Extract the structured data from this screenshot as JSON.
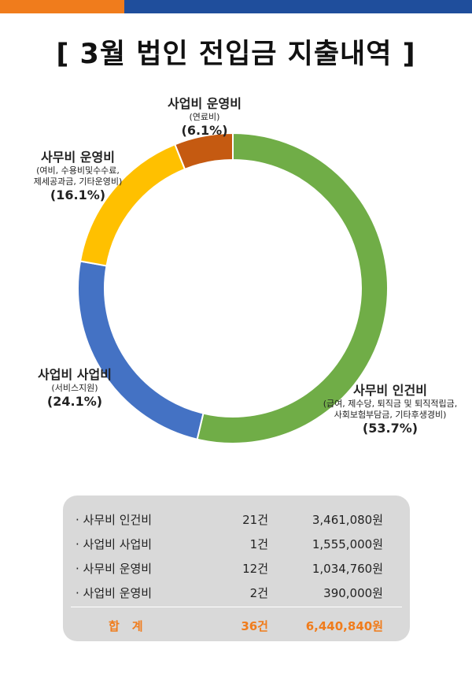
{
  "header": {
    "title": "[ 3월 법인 전입금 지출내역 ]"
  },
  "colors": {
    "accent_orange": "#f07c1c",
    "accent_blue": "#1f4e9c",
    "table_bg": "#d9d9d9"
  },
  "chart_data": {
    "type": "pie",
    "style": "donut",
    "title": "",
    "slices": [
      {
        "label": "사무비 인건비",
        "detail": [
          "(급여, 제수당, 퇴직금 및 퇴직적립금,",
          "사회보험부담금, 기타후생경비)"
        ],
        "value": 53.7,
        "pct_label": "(53.7%)",
        "color": "#70ad47"
      },
      {
        "label": "사업비 사업비",
        "detail": [
          "(서비스지원)"
        ],
        "value": 24.1,
        "pct_label": "(24.1%)",
        "color": "#4472c4"
      },
      {
        "label": "사무비 운영비",
        "detail": [
          "(여비, 수용비및수수료,",
          "제세공과금, 기타운영비)"
        ],
        "value": 16.1,
        "pct_label": "(16.1%)",
        "color": "#ffc000"
      },
      {
        "label": "사업비 운영비",
        "detail": [
          "(연료비)"
        ],
        "value": 6.1,
        "pct_label": "(6.1%)",
        "color": "#c55a11"
      }
    ]
  },
  "table": {
    "rows": [
      {
        "name": "· 사무비 인건비",
        "count": "21건",
        "amount": "3,461,080원"
      },
      {
        "name": "· 사업비 사업비",
        "count": "1건",
        "amount": "1,555,000원"
      },
      {
        "name": "· 사무비 운영비",
        "count": "12건",
        "amount": "1,034,760원"
      },
      {
        "name": "· 사업비 운영비",
        "count": "2건",
        "amount": "390,000원"
      }
    ],
    "total": {
      "name": "합계",
      "count": "36건",
      "amount": "6,440,840원"
    }
  }
}
